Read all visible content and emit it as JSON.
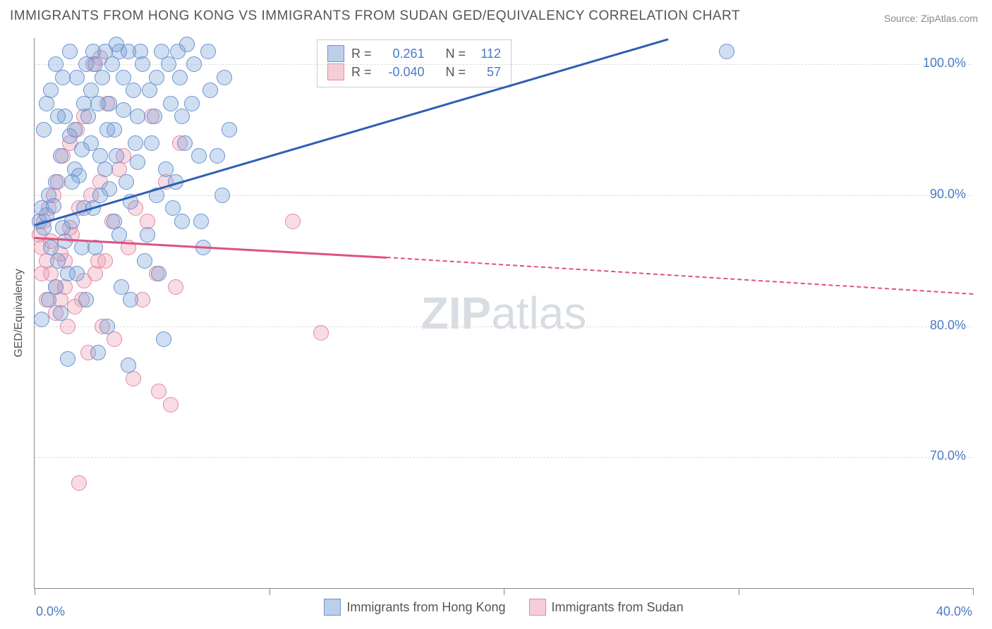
{
  "title": "IMMIGRANTS FROM HONG KONG VS IMMIGRANTS FROM SUDAN GED/EQUIVALENCY CORRELATION CHART",
  "source": "Source: ZipAtlas.com",
  "watermark_bold": "ZIP",
  "watermark_light": "atlas",
  "axes": {
    "y_title": "GED/Equivalency",
    "x_min": 0,
    "x_max": 40,
    "y_min": 60,
    "y_max": 102,
    "y_ticks": [
      70,
      80,
      90,
      100
    ],
    "y_tick_labels": [
      "70.0%",
      "80.0%",
      "90.0%",
      "100.0%"
    ],
    "x_ticks": [
      0,
      10,
      20,
      30,
      40
    ],
    "x_tick_labels_shown": {
      "0": "0.0%",
      "40": "40.0%"
    },
    "grid_color": "#dddddd"
  },
  "series": {
    "hk": {
      "label": "Immigrants from Hong Kong",
      "fill": "rgba(120,160,215,0.35)",
      "stroke": "#6a93d0",
      "trend_color": "#2e5fb3",
      "r_label": "R =",
      "r_val": "0.261",
      "n_label": "N =",
      "n_val": "112",
      "trend": {
        "x1": 0,
        "y1": 87.8,
        "x2": 27,
        "y2": 102,
        "dashed_extend_to_x": null
      },
      "points": [
        [
          0.2,
          88
        ],
        [
          0.3,
          89
        ],
        [
          0.4,
          87.5
        ],
        [
          0.5,
          88.5
        ],
        [
          0.6,
          90
        ],
        [
          0.7,
          86
        ],
        [
          0.8,
          89.2
        ],
        [
          0.9,
          91
        ],
        [
          1.0,
          85
        ],
        [
          1.1,
          93
        ],
        [
          1.2,
          87.5
        ],
        [
          1.3,
          96
        ],
        [
          1.4,
          84
        ],
        [
          1.5,
          94.5
        ],
        [
          1.6,
          88
        ],
        [
          1.7,
          92
        ],
        [
          1.8,
          99
        ],
        [
          1.9,
          91.5
        ],
        [
          2.0,
          86
        ],
        [
          2.1,
          97
        ],
        [
          2.2,
          82
        ],
        [
          2.4,
          94
        ],
        [
          2.5,
          89
        ],
        [
          2.6,
          100
        ],
        [
          2.7,
          78
        ],
        [
          2.8,
          93
        ],
        [
          3.0,
          101
        ],
        [
          3.1,
          80
        ],
        [
          3.2,
          90.5
        ],
        [
          3.4,
          95
        ],
        [
          3.5,
          101.5
        ],
        [
          3.6,
          87
        ],
        [
          3.7,
          83
        ],
        [
          3.8,
          96.5
        ],
        [
          4.0,
          77
        ],
        [
          4.1,
          89.5
        ],
        [
          4.2,
          98
        ],
        [
          4.4,
          92.5
        ],
        [
          4.5,
          101
        ],
        [
          4.7,
          85
        ],
        [
          5.0,
          94
        ],
        [
          5.2,
          90
        ],
        [
          5.4,
          101
        ],
        [
          5.5,
          79
        ],
        [
          5.8,
          97
        ],
        [
          6.0,
          91
        ],
        [
          6.2,
          99
        ],
        [
          6.3,
          88
        ],
        [
          6.5,
          101.5
        ],
        [
          7.0,
          93
        ],
        [
          7.2,
          86
        ],
        [
          7.5,
          98
        ],
        [
          8.0,
          90
        ],
        [
          8.3,
          95
        ],
        [
          29.5,
          101
        ],
        [
          0.3,
          80.5
        ],
        [
          0.6,
          82
        ],
        [
          0.9,
          83
        ],
        [
          1.1,
          81
        ],
        [
          1.3,
          86.5
        ],
        [
          1.4,
          77.5
        ],
        [
          1.6,
          91
        ],
        [
          1.8,
          84
        ],
        [
          2.0,
          93.5
        ],
        [
          2.1,
          89
        ],
        [
          2.3,
          96
        ],
        [
          2.5,
          101
        ],
        [
          2.6,
          86
        ],
        [
          2.8,
          90
        ],
        [
          3.0,
          92
        ],
        [
          3.2,
          97
        ],
        [
          3.4,
          88
        ],
        [
          3.6,
          101
        ],
        [
          3.9,
          91
        ],
        [
          4.1,
          82
        ],
        [
          4.3,
          94
        ],
        [
          4.6,
          100
        ],
        [
          4.8,
          87
        ],
        [
          5.1,
          96
        ],
        [
          5.3,
          84
        ],
        [
          5.6,
          92
        ],
        [
          5.9,
          89
        ],
        [
          6.1,
          101
        ],
        [
          6.4,
          94
        ],
        [
          6.7,
          97
        ],
        [
          7.1,
          88
        ],
        [
          7.4,
          101
        ],
        [
          7.8,
          93
        ],
        [
          8.1,
          99
        ],
        [
          0.4,
          95
        ],
        [
          0.5,
          97
        ],
        [
          0.7,
          98
        ],
        [
          0.9,
          100
        ],
        [
          1.0,
          96
        ],
        [
          1.2,
          99
        ],
        [
          1.5,
          101
        ],
        [
          1.7,
          95
        ],
        [
          2.2,
          100
        ],
        [
          2.4,
          98
        ],
        [
          2.7,
          97
        ],
        [
          2.9,
          99
        ],
        [
          3.1,
          95
        ],
        [
          3.3,
          100
        ],
        [
          3.5,
          93
        ],
        [
          3.8,
          99
        ],
        [
          4.0,
          101
        ],
        [
          4.4,
          96
        ],
        [
          4.9,
          98
        ],
        [
          5.2,
          99
        ],
        [
          5.7,
          100
        ],
        [
          6.3,
          96
        ],
        [
          6.8,
          100
        ]
      ]
    },
    "sd": {
      "label": "Immigrants from Sudan",
      "fill": "rgba(235,155,175,0.35)",
      "stroke": "#e089a1",
      "trend_color": "#e05080",
      "r_label": "R =",
      "r_val": "-0.040",
      "n_label": "N =",
      "n_val": "57",
      "trend": {
        "x1": 0,
        "y1": 86.8,
        "x2": 15,
        "y2": 85.3,
        "dashed_extend_to_x": 40,
        "dashed_y_at_end": 82.5
      },
      "points": [
        [
          0.2,
          87
        ],
        [
          0.3,
          86
        ],
        [
          0.4,
          88
        ],
        [
          0.5,
          85
        ],
        [
          0.6,
          89
        ],
        [
          0.7,
          84
        ],
        [
          0.8,
          90
        ],
        [
          0.9,
          83
        ],
        [
          1.0,
          91
        ],
        [
          1.1,
          82
        ],
        [
          1.2,
          93
        ],
        [
          1.3,
          85
        ],
        [
          1.4,
          80
        ],
        [
          1.5,
          94
        ],
        [
          1.6,
          87
        ],
        [
          1.8,
          95
        ],
        [
          2.0,
          82
        ],
        [
          2.1,
          96
        ],
        [
          2.3,
          78
        ],
        [
          2.5,
          100
        ],
        [
          2.7,
          85
        ],
        [
          2.9,
          80
        ],
        [
          3.1,
          97
        ],
        [
          3.3,
          88
        ],
        [
          3.6,
          92
        ],
        [
          4.0,
          86
        ],
        [
          4.3,
          89
        ],
        [
          4.6,
          82
        ],
        [
          5.0,
          96
        ],
        [
          5.3,
          75
        ],
        [
          5.8,
          74
        ],
        [
          6.2,
          94
        ],
        [
          11.0,
          88
        ],
        [
          12.2,
          79.5
        ],
        [
          1.9,
          68
        ],
        [
          0.3,
          84
        ],
        [
          0.5,
          82
        ],
        [
          0.7,
          86.5
        ],
        [
          0.9,
          81
        ],
        [
          1.1,
          85.5
        ],
        [
          1.3,
          83
        ],
        [
          1.5,
          87.5
        ],
        [
          1.7,
          81.5
        ],
        [
          1.9,
          89
        ],
        [
          2.1,
          83.5
        ],
        [
          2.4,
          90
        ],
        [
          2.6,
          84
        ],
        [
          2.8,
          91
        ],
        [
          3.0,
          85
        ],
        [
          3.4,
          79
        ],
        [
          3.8,
          93
        ],
        [
          4.2,
          76
        ],
        [
          4.8,
          88
        ],
        [
          5.2,
          84
        ],
        [
          5.6,
          91
        ],
        [
          6.0,
          83
        ],
        [
          2.8,
          100.5
        ]
      ]
    }
  },
  "colors": {
    "hk_swatch_fill": "rgba(120,160,215,0.5)",
    "hk_swatch_stroke": "#6a93d0",
    "sd_swatch_fill": "rgba(235,155,175,0.5)",
    "sd_swatch_stroke": "#e089a1"
  }
}
